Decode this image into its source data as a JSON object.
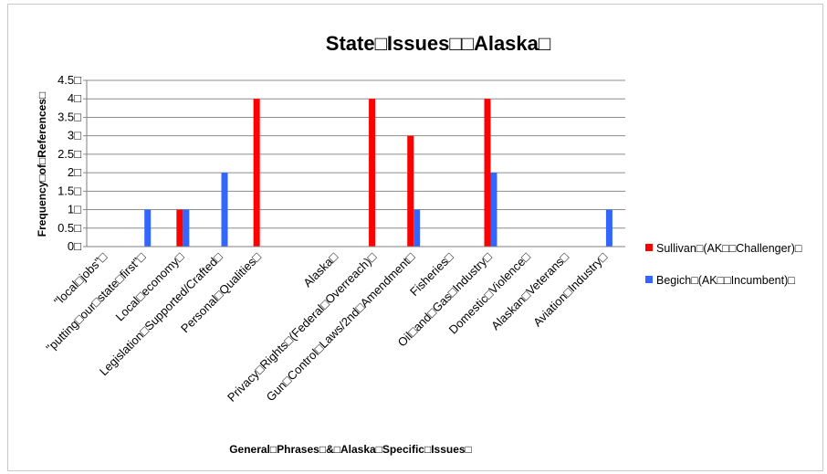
{
  "chart_data": {
    "type": "bar",
    "title": "State□Issues□□Alaska□",
    "xlabel": "General□Phrases□&□Alaska□Specific□Issues□",
    "ylabel": "Frequency□of□References□",
    "ylim": [
      0,
      4.5
    ],
    "yticks": [
      "0□",
      "0.5□",
      "1□",
      "1.5□",
      "2□",
      "2.5□",
      "3□",
      "3.5□",
      "4□",
      "4.5□"
    ],
    "grid": true,
    "legend_position": "right",
    "categories": [
      "\"local□jobs\"□",
      "\"putting□our□state□first\"□",
      "Local□economy□",
      "Legislation□Supported/Crafted□",
      "Personal□Qualities□",
      "",
      "Alaska□",
      "Privacy□Rights□(Federal□Overreach)□",
      "Gun□Control□Laws/2nd□Amendment□",
      "Fisheries□",
      "Oil□and□Gas□Industry□",
      "Domestic□Violence□",
      "Alaskan□Veterans□",
      "Aviation□Industry□"
    ],
    "series": [
      {
        "name": "Sullivan□(AK□□Challenger)□",
        "color": "#ff0000",
        "values": [
          0,
          0,
          1,
          0,
          4,
          0,
          0,
          4,
          3,
          0,
          4,
          0,
          0,
          0
        ]
      },
      {
        "name": "Begich□(AK□□Incumbent)□",
        "color": "#3366ff",
        "values": [
          0,
          1,
          1,
          2,
          0,
          0,
          0,
          0,
          1,
          0,
          2,
          0,
          0,
          1
        ]
      }
    ]
  }
}
